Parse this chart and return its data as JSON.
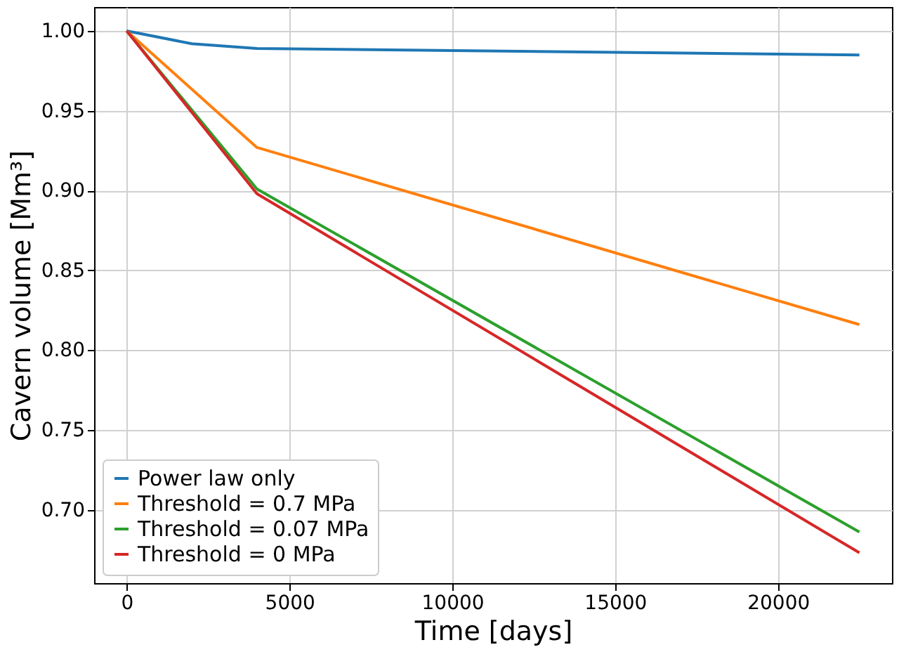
{
  "chart_data": {
    "type": "line",
    "xlabel": "Time [days]",
    "ylabel": "Cavern volume [Mm³]",
    "xlim": [
      -1000,
      23500
    ],
    "ylim": [
      0.654,
      1.015
    ],
    "xticks": [
      0,
      5000,
      10000,
      15000,
      20000
    ],
    "yticks": [
      {
        "value": 0.7,
        "label": "0.70"
      },
      {
        "value": 0.75,
        "label": "0.75"
      },
      {
        "value": 0.8,
        "label": "0.80"
      },
      {
        "value": 0.85,
        "label": "0.85"
      },
      {
        "value": 0.9,
        "label": "0.90"
      },
      {
        "value": 0.95,
        "label": "0.95"
      },
      {
        "value": 1.0,
        "label": "1.00"
      }
    ],
    "grid": true,
    "legend": "bottom left",
    "marker": "none",
    "line_style": "solid",
    "series": [
      {
        "name": "Power law only",
        "color": "#1f77b4",
        "x": [
          0,
          2000,
          4000,
          22500
        ],
        "values": [
          1.0,
          0.992,
          0.989,
          0.985
        ]
      },
      {
        "name": "Threshold = 0.7 MPa",
        "color": "#ff7f0e",
        "x": [
          0,
          4000,
          22500
        ],
        "values": [
          1.0,
          0.927,
          0.816
        ]
      },
      {
        "name": "Threshold = 0.07 MPa",
        "color": "#2ca02c",
        "x": [
          0,
          4000,
          22500
        ],
        "values": [
          1.0,
          0.901,
          0.686
        ]
      },
      {
        "name": "Threshold = 0 MPa",
        "color": "#d62728",
        "x": [
          0,
          4000,
          22500
        ],
        "values": [
          1.0,
          0.898,
          0.673
        ]
      }
    ]
  }
}
